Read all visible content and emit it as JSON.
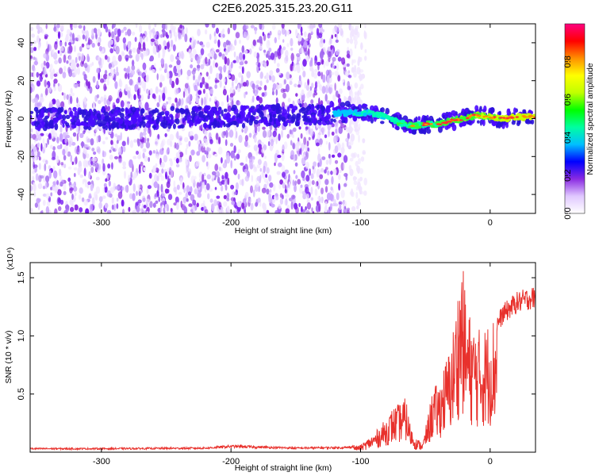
{
  "title": "C2E6.2025.315.23.20.G11",
  "chart_data": [
    {
      "type": "heatmap",
      "xlabel": "Height of straight line (km)",
      "ylabel": "Frequency (Hz)",
      "xlim": [
        -355,
        35
      ],
      "ylim": [
        -50,
        50
      ],
      "xticks": [
        "-300",
        "-200",
        "-100",
        "0"
      ],
      "yticks": [
        "40",
        "20",
        "0",
        "-20",
        "-40"
      ],
      "colorbar": {
        "label": "Normalized spectral amplitude",
        "range": [
          0.0,
          1.0
        ],
        "ticks": [
          "0.0",
          "0.2",
          "0.4",
          "0.6",
          "0.8"
        ],
        "colors": [
          "#ffffff",
          "#e0c8ff",
          "#8a2be2",
          "#0000ff",
          "#00c0ff",
          "#00ffa0",
          "#00ff00",
          "#c0ff00",
          "#ffff00",
          "#ff9000",
          "#ff0000",
          "#ff0080"
        ]
      },
      "noise_region_xmax": -108,
      "signal_trace": [
        {
          "x": -355,
          "f": 0
        },
        {
          "x": -300,
          "f": 0
        },
        {
          "x": -200,
          "f": 1
        },
        {
          "x": -150,
          "f": 2
        },
        {
          "x": -110,
          "f": 3
        },
        {
          "x": -95,
          "f": 3
        },
        {
          "x": -80,
          "f": 1
        },
        {
          "x": -70,
          "f": -2
        },
        {
          "x": -60,
          "f": -4
        },
        {
          "x": -50,
          "f": -3
        },
        {
          "x": -40,
          "f": -3
        },
        {
          "x": -30,
          "f": -1
        },
        {
          "x": -20,
          "f": 0
        },
        {
          "x": -10,
          "f": 2
        },
        {
          "x": 0,
          "f": 1
        },
        {
          "x": 10,
          "f": 0
        },
        {
          "x": 20,
          "f": 1
        },
        {
          "x": 35,
          "f": 1
        }
      ]
    },
    {
      "type": "line",
      "xlabel": "Height of straight line (km)",
      "ylabel": "SNR (10 * v/v)",
      "y_multiplier": "(x10⁴)",
      "xlim": [
        -355,
        35
      ],
      "ylim": [
        0,
        1.63
      ],
      "xticks": [
        "-300",
        "-200",
        "-100",
        "0"
      ],
      "yticks": [
        "1.5",
        "1.0",
        "0.5"
      ],
      "series": [
        {
          "color": "#e8312c",
          "envelope": [
            {
              "x": -355,
              "y": 0.03
            },
            {
              "x": -300,
              "y": 0.03
            },
            {
              "x": -220,
              "y": 0.035
            },
            {
              "x": -200,
              "y": 0.05
            },
            {
              "x": -150,
              "y": 0.035
            },
            {
              "x": -110,
              "y": 0.04
            },
            {
              "x": -100,
              "y": 0.06
            },
            {
              "x": -90,
              "y": 0.15
            },
            {
              "x": -80,
              "y": 0.28
            },
            {
              "x": -75,
              "y": 0.37
            },
            {
              "x": -70,
              "y": 0.4
            },
            {
              "x": -65,
              "y": 0.45
            },
            {
              "x": -62,
              "y": 0.25
            },
            {
              "x": -58,
              "y": 0.12
            },
            {
              "x": -52,
              "y": 0.08
            },
            {
              "x": -48,
              "y": 0.3
            },
            {
              "x": -44,
              "y": 0.55
            },
            {
              "x": -40,
              "y": 0.55
            },
            {
              "x": -36,
              "y": 0.7
            },
            {
              "x": -30,
              "y": 0.9
            },
            {
              "x": -26,
              "y": 1.25
            },
            {
              "x": -22,
              "y": 1.63
            },
            {
              "x": -18,
              "y": 1.2
            },
            {
              "x": -12,
              "y": 1.05
            },
            {
              "x": -6,
              "y": 1.0
            },
            {
              "x": 0,
              "y": 1.1
            },
            {
              "x": 5,
              "y": 1.15
            },
            {
              "x": 10,
              "y": 1.25
            },
            {
              "x": 15,
              "y": 1.3
            },
            {
              "x": 20,
              "y": 1.35
            },
            {
              "x": 25,
              "y": 1.37
            },
            {
              "x": 30,
              "y": 1.39
            },
            {
              "x": 35,
              "y": 1.4
            }
          ]
        }
      ]
    }
  ]
}
